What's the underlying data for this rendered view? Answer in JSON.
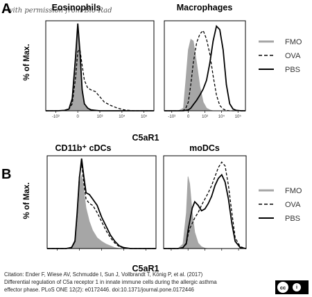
{
  "watermark": "with permission from Bio-Rad",
  "panels": [
    {
      "letter": "A",
      "xlabel": "C5aR1",
      "ylabel": "% of Max."
    },
    {
      "letter": "B",
      "xlabel": "C5aR1",
      "ylabel": "% of Max."
    }
  ],
  "legend": [
    {
      "label": "FMO",
      "style": "gray"
    },
    {
      "label": "OVA",
      "style": "dashed"
    },
    {
      "label": "PBS",
      "style": "solid"
    }
  ],
  "colors": {
    "fmo": "#a6a6a6",
    "ova": "#000000",
    "pbs": "#000000"
  },
  "citation": [
    "Citation: Ender F, Wiese AV, Schmudde I, Sun J, Vollbrandt T, König P, et al. (2017)",
    "Differential regulation of C5a receptor 1 in innate immune cells during the allergic asthma",
    "effector phase. PLoS ONE 12(2): e0172446. doi:10.1371/journal.pone.0172446"
  ],
  "license": {
    "cc": "cc",
    "by": "i"
  },
  "chart_data": [
    {
      "type": "area",
      "title": "Eosinophils",
      "xlabel": "C5aR1",
      "ylabel": "% of Max.",
      "ylim": [
        0,
        100
      ],
      "xtick_labels": [
        "-10³",
        "0",
        "10³",
        "10⁴",
        "10⁵"
      ],
      "xtick_pos": [
        -1,
        0,
        1,
        2,
        3
      ],
      "xlim": [
        -1.45,
        3.45
      ],
      "x": [
        -1.45,
        -1.2,
        -0.9,
        -0.6,
        -0.4,
        -0.25,
        -0.1,
        0,
        0.1,
        0.2,
        0.3,
        0.45,
        0.6,
        0.8,
        1.0,
        1.2,
        1.5,
        1.8,
        2.1,
        2.5,
        3.0,
        3.45
      ],
      "series": [
        {
          "name": "FMO",
          "style": "gray",
          "values": [
            0,
            0,
            0,
            0.5,
            2,
            12,
            55,
            93,
            60,
            22,
            6,
            2,
            1,
            0,
            0,
            0,
            0,
            0,
            0,
            0,
            0,
            0
          ]
        },
        {
          "name": "OVA",
          "style": "dashed",
          "values": [
            0,
            0,
            0,
            0.5,
            2,
            8,
            38,
            68,
            70,
            52,
            35,
            26,
            24,
            22,
            16,
            10,
            6,
            3,
            1,
            0,
            0,
            0
          ]
        },
        {
          "name": "PBS",
          "style": "solid",
          "values": [
            0,
            0,
            0,
            0.5,
            2,
            14,
            62,
            100,
            68,
            24,
            8,
            3,
            1,
            0.5,
            0,
            0,
            0,
            0,
            0,
            0,
            0,
            0
          ]
        }
      ]
    },
    {
      "type": "area",
      "title": "Macrophages",
      "xlabel": "C5aR1",
      "ylabel": "% of Max.",
      "ylim": [
        0,
        100
      ],
      "xtick_labels": [
        "-10³",
        "0",
        "10³",
        "10⁴",
        "10⁵"
      ],
      "xtick_pos": [
        -1,
        0,
        1,
        2,
        3
      ],
      "xlim": [
        -1.45,
        3.45
      ],
      "x": [
        -1.45,
        -1,
        -0.6,
        -0.3,
        -0.15,
        0,
        0.15,
        0.3,
        0.5,
        0.7,
        0.9,
        1.1,
        1.3,
        1.5,
        1.7,
        1.9,
        2.1,
        2.3,
        2.5,
        2.7,
        2.9,
        3.2,
        3.45
      ],
      "series": [
        {
          "name": "FMO",
          "style": "gray",
          "values": [
            0,
            0,
            0,
            3,
            35,
            70,
            82,
            80,
            55,
            28,
            10,
            3,
            1,
            0,
            0,
            0,
            0,
            0,
            0,
            0,
            0,
            0,
            0
          ]
        },
        {
          "name": "OVA",
          "style": "dashed",
          "values": [
            0,
            0,
            0,
            0.5,
            3,
            10,
            30,
            55,
            78,
            88,
            92,
            82,
            65,
            40,
            18,
            6,
            2,
            0.5,
            0,
            0,
            0,
            0,
            0
          ]
        },
        {
          "name": "PBS",
          "style": "solid",
          "values": [
            0,
            0,
            0,
            0,
            0.5,
            1,
            3,
            7,
            12,
            18,
            25,
            35,
            55,
            80,
            97,
            93,
            70,
            30,
            8,
            2,
            0.5,
            0,
            0
          ]
        }
      ]
    },
    {
      "type": "area",
      "title": "CD11b⁺ cDCs",
      "xlabel": "C5aR1",
      "ylabel": "% of Max.",
      "ylim": [
        0,
        100
      ],
      "xlim": [
        -1.45,
        3.45
      ],
      "x": [
        -1.45,
        -1,
        -0.6,
        -0.35,
        -0.2,
        -0.1,
        0,
        0.1,
        0.2,
        0.3,
        0.45,
        0.6,
        0.8,
        1.0,
        1.2,
        1.4,
        1.6,
        1.8,
        2.0,
        2.3,
        2.7,
        3.45
      ],
      "series": [
        {
          "name": "FMO",
          "style": "gray",
          "values": [
            0,
            0,
            0,
            2,
            10,
            40,
            70,
            82,
            65,
            45,
            30,
            20,
            12,
            8,
            5,
            3,
            1,
            0,
            0,
            0,
            0,
            0
          ]
        },
        {
          "name": "OVA",
          "style": "dashed",
          "values": [
            0,
            0,
            0,
            1,
            8,
            38,
            80,
            95,
            72,
            55,
            50,
            48,
            40,
            30,
            20,
            12,
            6,
            2,
            1,
            0,
            0,
            0
          ]
        },
        {
          "name": "PBS",
          "style": "solid",
          "values": [
            0,
            0,
            0,
            1,
            8,
            40,
            78,
            100,
            80,
            62,
            60,
            55,
            48,
            35,
            25,
            15,
            8,
            3,
            1,
            0,
            0,
            0
          ]
        }
      ]
    },
    {
      "type": "area",
      "title": "moDCs",
      "xlabel": "C5aR1",
      "ylabel": "% of Max.",
      "ylim": [
        0,
        100
      ],
      "xlim": [
        -1.45,
        3.45
      ],
      "x": [
        -1.45,
        -1,
        -0.6,
        -0.3,
        -0.1,
        0,
        0.1,
        0.25,
        0.4,
        0.6,
        0.8,
        1.0,
        1.2,
        1.4,
        1.6,
        1.8,
        2.0,
        2.2,
        2.4,
        2.6,
        2.8,
        3.1,
        3.45
      ],
      "series": [
        {
          "name": "FMO",
          "style": "gray",
          "values": [
            0,
            0,
            0,
            5,
            40,
            80,
            72,
            40,
            18,
            6,
            2,
            0.5,
            0,
            0,
            0,
            0,
            0,
            0,
            0,
            0,
            0,
            0,
            0
          ]
        },
        {
          "name": "OVA",
          "style": "dashed",
          "values": [
            0,
            0,
            0,
            1,
            5,
            15,
            22,
            28,
            34,
            40,
            48,
            55,
            62,
            70,
            80,
            90,
            96,
            92,
            70,
            40,
            12,
            2,
            0
          ]
        },
        {
          "name": "PBS",
          "style": "solid",
          "values": [
            0,
            0,
            0,
            1,
            6,
            20,
            30,
            45,
            52,
            48,
            42,
            44,
            50,
            58,
            70,
            78,
            82,
            74,
            55,
            28,
            8,
            1,
            0
          ]
        }
      ]
    }
  ]
}
